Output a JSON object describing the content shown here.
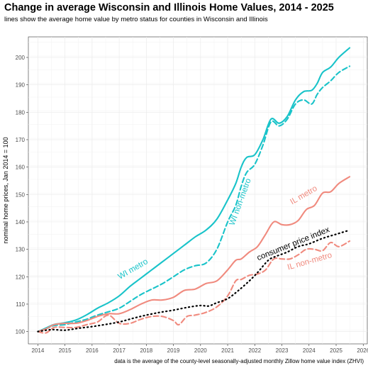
{
  "chart_data": {
    "type": "line",
    "title": "Change in average Wisconsin and Illinois Home Values, 2014 - 2025",
    "subtitle": "lines show the average home value by metro status for counties in Wisconsin and Illinois",
    "caption": "data is the average of the county-level seasonally-adjusted monthly Zillow home value index (ZHVI)",
    "xlabel": "",
    "ylabel": "nominal home prices, Jan 2014 = 100",
    "xlim": [
      2013.65,
      2026.15
    ],
    "ylim": [
      95.5,
      207.5
    ],
    "x_ticks": [
      "2014",
      "2015",
      "2016",
      "2017",
      "2018",
      "2019",
      "2020",
      "2021",
      "2022",
      "2023",
      "2024",
      "2025",
      "2026"
    ],
    "y_ticks": [
      "100",
      "110",
      "120",
      "130",
      "140",
      "150",
      "160",
      "170",
      "180",
      "190",
      "200"
    ],
    "grid": true,
    "colors": {
      "WI": "#19c3c9",
      "IL": "#f08a7e",
      "CPI": "#000000"
    },
    "series": [
      {
        "name": "WI metro",
        "color": "#19c3c9",
        "dash": "solid",
        "label_at": [
          2017.55,
          122
        ],
        "label_angle": -30,
        "points": [
          [
            2014.0,
            100
          ],
          [
            2014.3,
            101.3
          ],
          [
            2014.6,
            102.6
          ],
          [
            2015.0,
            103.2
          ],
          [
            2015.4,
            104.2
          ],
          [
            2015.8,
            106.1
          ],
          [
            2016.2,
            108.5
          ],
          [
            2016.6,
            110.5
          ],
          [
            2017.0,
            113.0
          ],
          [
            2017.4,
            116.5
          ],
          [
            2017.8,
            119.5
          ],
          [
            2018.2,
            122.5
          ],
          [
            2018.6,
            125.5
          ],
          [
            2019.0,
            128.5
          ],
          [
            2019.4,
            131.5
          ],
          [
            2019.8,
            134.5
          ],
          [
            2020.2,
            137.0
          ],
          [
            2020.6,
            141.0
          ],
          [
            2021.0,
            148.0
          ],
          [
            2021.3,
            154.0
          ],
          [
            2021.5,
            160.0
          ],
          [
            2021.7,
            163.5
          ],
          [
            2022.0,
            164.5
          ],
          [
            2022.3,
            170.0
          ],
          [
            2022.6,
            177.5
          ],
          [
            2022.9,
            176.0
          ],
          [
            2023.2,
            178.5
          ],
          [
            2023.5,
            184.5
          ],
          [
            2023.8,
            187.5
          ],
          [
            2024.1,
            188.0
          ],
          [
            2024.3,
            190.5
          ],
          [
            2024.5,
            194.5
          ],
          [
            2024.8,
            196.5
          ],
          [
            2025.1,
            200.0
          ],
          [
            2025.5,
            203.5
          ]
        ]
      },
      {
        "name": "WI non-metro",
        "color": "#19c3c9",
        "dash": "dashed",
        "label_at": [
          2021.55,
          147
        ],
        "label_angle": -70,
        "points": [
          [
            2014.0,
            100
          ],
          [
            2014.3,
            101.0
          ],
          [
            2014.6,
            102.2
          ],
          [
            2015.0,
            102.5
          ],
          [
            2015.4,
            103.5
          ],
          [
            2015.8,
            104.5
          ],
          [
            2016.2,
            106.0
          ],
          [
            2016.6,
            107.2
          ],
          [
            2017.0,
            108.5
          ],
          [
            2017.4,
            111.0
          ],
          [
            2017.8,
            113.5
          ],
          [
            2018.2,
            115.5
          ],
          [
            2018.6,
            117.5
          ],
          [
            2019.0,
            120.0
          ],
          [
            2019.4,
            122.5
          ],
          [
            2019.8,
            124.0
          ],
          [
            2020.2,
            125.0
          ],
          [
            2020.6,
            130.0
          ],
          [
            2021.0,
            140.0
          ],
          [
            2021.3,
            146.0
          ],
          [
            2021.5,
            153.0
          ],
          [
            2021.7,
            158.0
          ],
          [
            2022.0,
            161.0
          ],
          [
            2022.3,
            168.0
          ],
          [
            2022.6,
            176.5
          ],
          [
            2022.9,
            175.0
          ],
          [
            2023.2,
            177.5
          ],
          [
            2023.5,
            183.0
          ],
          [
            2023.8,
            184.5
          ],
          [
            2024.1,
            183.0
          ],
          [
            2024.3,
            186.5
          ],
          [
            2024.5,
            189.0
          ],
          [
            2024.8,
            191.5
          ],
          [
            2025.1,
            194.5
          ],
          [
            2025.5,
            196.8
          ]
        ]
      },
      {
        "name": "IL metro",
        "color": "#f08a7e",
        "dash": "solid",
        "label_at": [
          2023.85,
          149
        ],
        "label_angle": -30,
        "points": [
          [
            2014.0,
            100
          ],
          [
            2014.3,
            101.0
          ],
          [
            2014.6,
            102.5
          ],
          [
            2015.0,
            103.0
          ],
          [
            2015.4,
            103.0
          ],
          [
            2015.8,
            104.0
          ],
          [
            2016.2,
            105.5
          ],
          [
            2016.6,
            106.5
          ],
          [
            2017.0,
            106.5
          ],
          [
            2017.4,
            108.0
          ],
          [
            2017.8,
            110.0
          ],
          [
            2018.2,
            111.5
          ],
          [
            2018.6,
            111.5
          ],
          [
            2019.0,
            112.5
          ],
          [
            2019.4,
            115.0
          ],
          [
            2019.8,
            115.5
          ],
          [
            2020.2,
            117.5
          ],
          [
            2020.6,
            118.5
          ],
          [
            2021.0,
            122.5
          ],
          [
            2021.3,
            126.0
          ],
          [
            2021.5,
            126.5
          ],
          [
            2021.8,
            129.0
          ],
          [
            2022.1,
            131.0
          ],
          [
            2022.4,
            135.5
          ],
          [
            2022.7,
            140.0
          ],
          [
            2023.0,
            139.0
          ],
          [
            2023.3,
            139.0
          ],
          [
            2023.6,
            140.5
          ],
          [
            2023.9,
            144.5
          ],
          [
            2024.2,
            146.0
          ],
          [
            2024.5,
            150.5
          ],
          [
            2024.8,
            151.0
          ],
          [
            2025.1,
            154.0
          ],
          [
            2025.5,
            156.5
          ]
        ]
      },
      {
        "name": "IL non-metro",
        "color": "#f08a7e",
        "dash": "dashed",
        "label_at": [
          2024.05,
          124.8
        ],
        "label_angle": -16,
        "points": [
          [
            2014.0,
            100
          ],
          [
            2014.3,
            99.5
          ],
          [
            2014.6,
            101.5
          ],
          [
            2015.0,
            101.5
          ],
          [
            2015.4,
            101.5
          ],
          [
            2015.8,
            102.5
          ],
          [
            2016.2,
            103.5
          ],
          [
            2016.6,
            106.0
          ],
          [
            2017.0,
            103.0
          ],
          [
            2017.4,
            103.0
          ],
          [
            2017.8,
            104.5
          ],
          [
            2018.2,
            105.5
          ],
          [
            2018.6,
            105.5
          ],
          [
            2019.0,
            104.0
          ],
          [
            2019.2,
            102.5
          ],
          [
            2019.5,
            105.5
          ],
          [
            2019.8,
            106.0
          ],
          [
            2020.2,
            107.0
          ],
          [
            2020.6,
            109.0
          ],
          [
            2021.0,
            113.0
          ],
          [
            2021.3,
            118.5
          ],
          [
            2021.5,
            119.0
          ],
          [
            2021.8,
            120.5
          ],
          [
            2022.1,
            121.0
          ],
          [
            2022.4,
            122.5
          ],
          [
            2022.7,
            126.5
          ],
          [
            2023.0,
            126.5
          ],
          [
            2023.3,
            126.5
          ],
          [
            2023.6,
            128.0
          ],
          [
            2023.9,
            130.0
          ],
          [
            2024.2,
            130.0
          ],
          [
            2024.5,
            129.5
          ],
          [
            2024.8,
            132.5
          ],
          [
            2025.1,
            131.0
          ],
          [
            2025.5,
            133.0
          ]
        ]
      },
      {
        "name": "consumer price index",
        "color": "#000000",
        "dash": "dotted",
        "label_at": [
          2023.45,
          131.2
        ],
        "label_angle": -22,
        "points": [
          [
            2014.0,
            100
          ],
          [
            2014.5,
            100.7
          ],
          [
            2015.0,
            100.5
          ],
          [
            2015.5,
            101.2
          ],
          [
            2016.0,
            101.8
          ],
          [
            2016.5,
            102.6
          ],
          [
            2017.0,
            103.5
          ],
          [
            2017.5,
            104.8
          ],
          [
            2018.0,
            106.0
          ],
          [
            2018.5,
            107.0
          ],
          [
            2019.0,
            107.8
          ],
          [
            2019.5,
            108.8
          ],
          [
            2020.0,
            109.5
          ],
          [
            2020.3,
            109.3
          ],
          [
            2020.6,
            110.5
          ],
          [
            2021.0,
            112.0
          ],
          [
            2021.4,
            115.0
          ],
          [
            2021.8,
            118.5
          ],
          [
            2022.1,
            121.5
          ],
          [
            2022.5,
            126.0
          ],
          [
            2022.8,
            127.5
          ],
          [
            2023.2,
            129.0
          ],
          [
            2023.6,
            131.0
          ],
          [
            2024.0,
            132.0
          ],
          [
            2024.5,
            134.0
          ],
          [
            2025.0,
            135.5
          ],
          [
            2025.5,
            137.0
          ]
        ]
      }
    ]
  }
}
